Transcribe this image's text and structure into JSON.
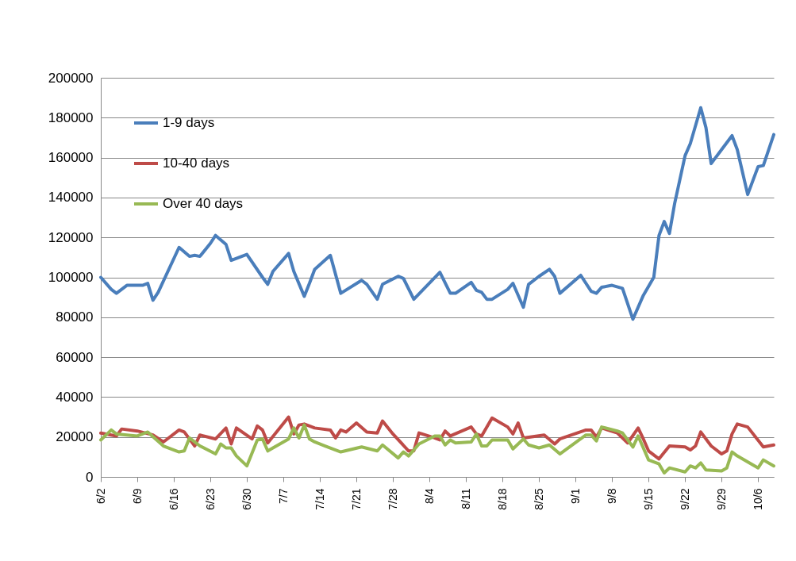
{
  "chart_data": {
    "type": "line",
    "xlim": [
      "--06-02",
      "--10-09"
    ],
    "xticks": [
      {
        "value": "--06-02",
        "label": "6/2"
      },
      {
        "value": "--06-09",
        "label": "6/9"
      },
      {
        "value": "--06-16",
        "label": "6/16"
      },
      {
        "value": "--06-23",
        "label": "6/23"
      },
      {
        "value": "--06-30",
        "label": "6/30"
      },
      {
        "value": "--07-07",
        "label": "7/7"
      },
      {
        "value": "--07-14",
        "label": "7/14"
      },
      {
        "value": "--07-21",
        "label": "7/21"
      },
      {
        "value": "--07-28",
        "label": "7/28"
      },
      {
        "value": "--08-04",
        "label": "8/4"
      },
      {
        "value": "--08-11",
        "label": "8/11"
      },
      {
        "value": "--08-18",
        "label": "8/18"
      },
      {
        "value": "--08-25",
        "label": "8/25"
      },
      {
        "value": "--09-01",
        "label": "9/1"
      },
      {
        "value": "--09-08",
        "label": "9/8"
      },
      {
        "value": "--09-15",
        "label": "9/15"
      },
      {
        "value": "--09-22",
        "label": "9/22"
      },
      {
        "value": "--09-29",
        "label": "9/29"
      },
      {
        "value": "--10-06",
        "label": "10/6"
      }
    ],
    "ylim": [
      0,
      200000
    ],
    "yticks": [
      0,
      20000,
      40000,
      60000,
      80000,
      100000,
      120000,
      140000,
      160000,
      180000,
      200000
    ],
    "grid": "y",
    "legend": "top left",
    "marker": "none",
    "line_style": "solid",
    "series": [
      {
        "name": "1-9 days",
        "color": "#4a7ebb",
        "x": [
          "--06-02",
          "--06-04",
          "--06-05",
          "--06-07",
          "--06-10",
          "--06-11",
          "--06-12",
          "--06-13",
          "--06-17",
          "--06-19",
          "--06-20",
          "--06-21",
          "--06-23",
          "--06-24",
          "--06-26",
          "--06-27",
          "--06-30",
          "--07-03",
          "--07-04",
          "--07-05",
          "--07-08",
          "--07-09",
          "--07-11",
          "--07-12",
          "--07-13",
          "--07-16",
          "--07-18",
          "--07-22",
          "--07-23",
          "--07-25",
          "--07-26",
          "--07-29",
          "--07-30",
          "--08-01",
          "--08-06",
          "--08-08",
          "--08-09",
          "--08-12",
          "--08-13",
          "--08-14",
          "--08-15",
          "--08-16",
          "--08-19",
          "--08-20",
          "--08-22",
          "--08-23",
          "--08-25",
          "--08-27",
          "--08-28",
          "--08-29",
          "--09-02",
          "--09-04",
          "--09-05",
          "--09-06",
          "--09-08",
          "--09-10",
          "--09-12",
          "--09-14",
          "--09-16",
          "--09-17",
          "--09-18",
          "--09-19",
          "--09-20",
          "--09-22",
          "--09-23",
          "--09-25",
          "--09-26",
          "--09-27",
          "--09-29",
          "--10-01",
          "--10-02",
          "--10-04",
          "--10-06",
          "--10-07",
          "--10-09"
        ],
        "values": [
          100000,
          94000,
          92000,
          96000,
          96000,
          97000,
          88500,
          92500,
          115000,
          110500,
          111000,
          110500,
          117000,
          121000,
          116500,
          108500,
          111500,
          100000,
          96500,
          103000,
          112000,
          103000,
          90500,
          97000,
          104000,
          111000,
          92000,
          98500,
          96500,
          89000,
          96500,
          100500,
          99500,
          89000,
          102500,
          92000,
          92000,
          97500,
          93500,
          92500,
          89000,
          89000,
          94000,
          97000,
          85000,
          96500,
          100500,
          104000,
          100500,
          92000,
          101000,
          93000,
          92000,
          95000,
          96000,
          94500,
          79000,
          91000,
          100000,
          121000,
          128000,
          122000,
          137000,
          161000,
          167000,
          185000,
          175000,
          157000,
          164000,
          171000,
          164000,
          141500,
          155500,
          156000,
          171500
        ]
      },
      {
        "name": "10-40 days",
        "color": "#be4b48",
        "x": [
          "--06-02",
          "--06-05",
          "--06-06",
          "--06-09",
          "--06-12",
          "--06-14",
          "--06-17",
          "--06-18",
          "--06-20",
          "--06-21",
          "--06-24",
          "--06-26",
          "--06-27",
          "--06-28",
          "--07-01",
          "--07-02",
          "--07-03",
          "--07-04",
          "--07-08",
          "--07-09",
          "--07-10",
          "--07-11",
          "--07-13",
          "--07-16",
          "--07-17",
          "--07-18",
          "--07-19",
          "--07-21",
          "--07-23",
          "--07-25",
          "--07-26",
          "--07-28",
          "--07-31",
          "--08-01",
          "--08-02",
          "--08-05",
          "--08-06",
          "--08-07",
          "--08-08",
          "--08-12",
          "--08-13",
          "--08-14",
          "--08-16",
          "--08-19",
          "--08-20",
          "--08-21",
          "--08-22",
          "--08-26",
          "--08-28",
          "--08-29",
          "--09-03",
          "--09-04",
          "--09-05",
          "--09-06",
          "--09-09",
          "--09-11",
          "--09-13",
          "--09-14",
          "--09-15",
          "--09-17",
          "--09-19",
          "--09-22",
          "--09-23",
          "--09-24",
          "--09-25",
          "--09-27",
          "--09-29",
          "--09-30",
          "--10-01",
          "--10-02",
          "--10-04",
          "--10-07",
          "--10-09"
        ],
        "values": [
          22000,
          20500,
          24000,
          23000,
          21000,
          17500,
          23500,
          22500,
          15500,
          21000,
          19000,
          24500,
          16500,
          24500,
          19000,
          25500,
          23500,
          17000,
          30000,
          21500,
          26000,
          26500,
          24500,
          23500,
          19500,
          23500,
          22500,
          27000,
          22500,
          22000,
          28000,
          21500,
          13000,
          13000,
          22000,
          19500,
          18500,
          23000,
          20500,
          25000,
          21500,
          20500,
          29500,
          25000,
          21500,
          27000,
          19500,
          21000,
          16500,
          19000,
          23500,
          23500,
          20000,
          24500,
          22000,
          17000,
          24500,
          19000,
          13000,
          9000,
          15500,
          15000,
          13500,
          15500,
          22500,
          15500,
          11500,
          13000,
          21500,
          26500,
          25000,
          15000,
          16000
        ]
      },
      {
        "name": "Over 40 days",
        "color": "#98b954",
        "x": [
          "--06-02",
          "--06-04",
          "--06-05",
          "--06-09",
          "--06-11",
          "--06-14",
          "--06-17",
          "--06-18",
          "--06-19",
          "--06-21",
          "--06-24",
          "--06-25",
          "--06-26",
          "--06-27",
          "--06-28",
          "--06-30",
          "--07-02",
          "--07-03",
          "--07-04",
          "--07-08",
          "--07-09",
          "--07-10",
          "--07-11",
          "--07-12",
          "--07-13",
          "--07-15",
          "--07-18",
          "--07-22",
          "--07-25",
          "--07-26",
          "--07-29",
          "--07-30",
          "--07-31",
          "--08-02",
          "--08-05",
          "--08-06",
          "--08-07",
          "--08-08",
          "--08-09",
          "--08-12",
          "--08-13",
          "--08-14",
          "--08-15",
          "--08-16",
          "--08-19",
          "--08-20",
          "--08-22",
          "--08-23",
          "--08-25",
          "--08-27",
          "--08-29",
          "--09-03",
          "--09-04",
          "--09-05",
          "--09-06",
          "--09-09",
          "--09-10",
          "--09-12",
          "--09-13",
          "--09-15",
          "--09-17",
          "--09-18",
          "--09-19",
          "--09-22",
          "--09-23",
          "--09-24",
          "--09-25",
          "--09-26",
          "--09-29",
          "--09-30",
          "--10-01",
          "--10-02",
          "--10-06",
          "--10-07",
          "--10-09"
        ],
        "values": [
          18500,
          23500,
          21500,
          20500,
          22500,
          15500,
          12500,
          13000,
          19500,
          15500,
          11500,
          16500,
          14500,
          14500,
          10500,
          5500,
          18500,
          19000,
          13000,
          19000,
          24500,
          19500,
          26000,
          19000,
          17500,
          15500,
          12500,
          15000,
          13000,
          16000,
          9500,
          12500,
          10500,
          16500,
          20500,
          20500,
          16000,
          18500,
          17000,
          17500,
          21500,
          15500,
          15500,
          18500,
          18500,
          14000,
          19000,
          16000,
          14500,
          16000,
          11500,
          21000,
          21000,
          18000,
          25000,
          23000,
          22000,
          15000,
          20500,
          8500,
          6500,
          2000,
          4500,
          2500,
          5500,
          4500,
          7000,
          3500,
          3000,
          4500,
          12500,
          10500,
          4500,
          8500,
          5500
        ]
      }
    ]
  }
}
